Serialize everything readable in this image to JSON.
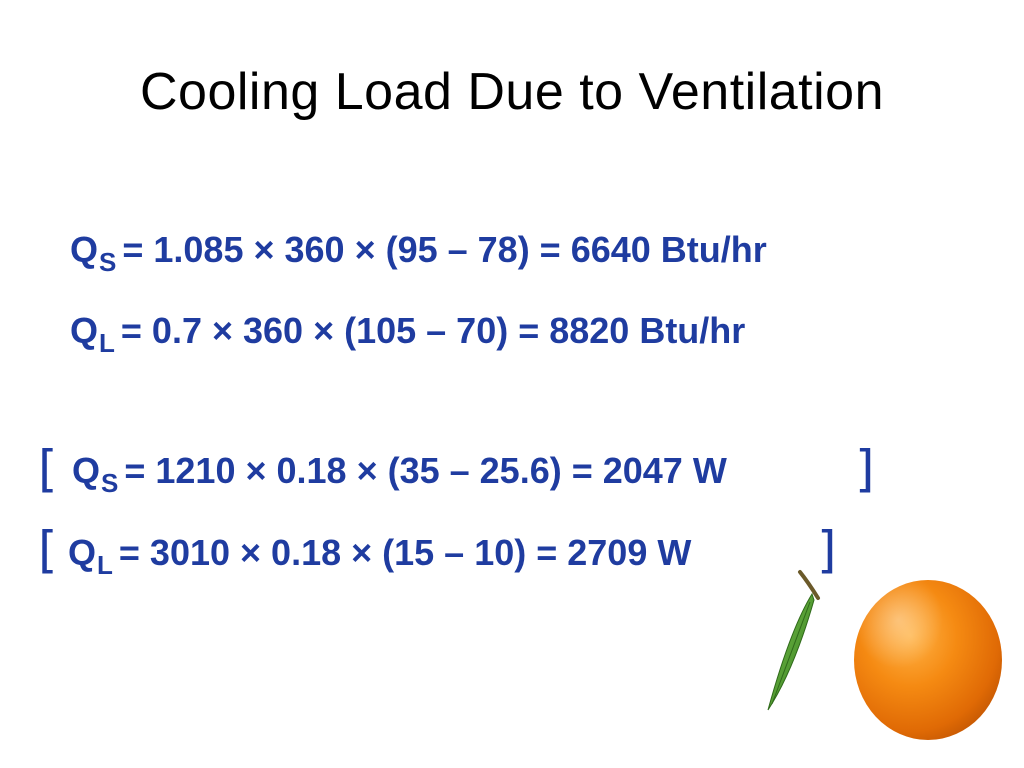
{
  "slide": {
    "title": "Cooling Load Due to Ventilation"
  },
  "equations": [
    {
      "symbol": "Q",
      "subscript": "S",
      "expression": "= 1.085 × 360 × (95 – 78) = 6640 Btu/hr",
      "bracketed": false
    },
    {
      "symbol": "Q",
      "subscript": "L",
      "expression": "= 0.7 × 360 × (105 – 70) = 8820 Btu/hr",
      "bracketed": false
    },
    {
      "symbol": "Q",
      "subscript": "S",
      "expression": "= 1210 × 0.18 × (35 – 25.6) = 2047 W",
      "bracketed": true,
      "open_bracket": "[",
      "close_bracket": "]"
    },
    {
      "symbol": "Q",
      "subscript": "L",
      "expression": "= 3010 × 0.18 × (15 – 10) = 2709 W",
      "bracketed": true,
      "open_bracket": "[",
      "close_bracket": "]"
    }
  ],
  "colors": {
    "equation_text": "#1f3ca0",
    "title_text": "#000000",
    "background": "#ffffff",
    "orange": "#f28a10",
    "leaf": "#3f8f2a"
  },
  "decoration": {
    "image": "orange-fruit-icon"
  }
}
